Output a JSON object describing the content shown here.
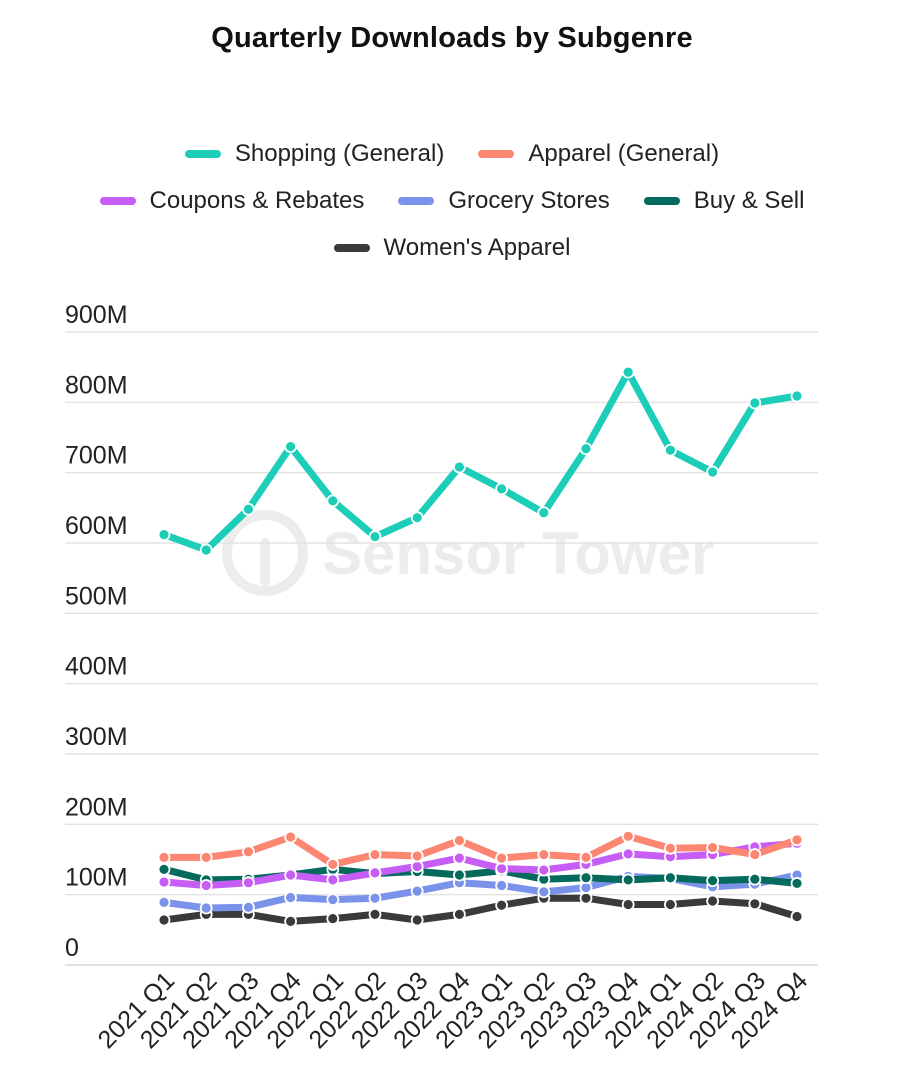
{
  "chart_data": {
    "type": "line",
    "title": "Quarterly Downloads by Subgenre",
    "xlabel": "",
    "ylabel": "",
    "ylim": [
      0,
      900
    ],
    "y_unit": "M",
    "yticks": [
      "0",
      "100M",
      "200M",
      "300M",
      "400M",
      "500M",
      "600M",
      "700M",
      "800M",
      "900M"
    ],
    "grid": true,
    "legend_position": "top",
    "categories": [
      "2021 Q1",
      "2021 Q2",
      "2021 Q3",
      "2021 Q4",
      "2022 Q1",
      "2022 Q2",
      "2022 Q3",
      "2022 Q4",
      "2023 Q1",
      "2023 Q2",
      "2023 Q3",
      "2023 Q4",
      "2024 Q1",
      "2024 Q2",
      "2024 Q3",
      "2024 Q4"
    ],
    "series": [
      {
        "name": "Shopping (General)",
        "color": "#1ccdb7",
        "values": [
          612,
          590,
          648,
          737,
          660,
          609,
          636,
          708,
          677,
          643,
          734,
          843,
          732,
          701,
          799,
          809
        ]
      },
      {
        "name": "Apparel (General)",
        "color": "#fc8672",
        "values": [
          153,
          153,
          161,
          182,
          143,
          157,
          155,
          177,
          152,
          157,
          153,
          183,
          166,
          167,
          157,
          178
        ]
      },
      {
        "name": "Coupons & Rebates",
        "color": "#c65ef5",
        "values": [
          118,
          113,
          117,
          128,
          121,
          131,
          140,
          152,
          137,
          135,
          143,
          158,
          154,
          157,
          168,
          173
        ]
      },
      {
        "name": "Grocery Stores",
        "color": "#7b92ea",
        "values": [
          89,
          81,
          82,
          96,
          93,
          95,
          105,
          117,
          113,
          104,
          110,
          126,
          123,
          111,
          115,
          128
        ]
      },
      {
        "name": "Buy & Sell",
        "color": "#046a5c",
        "values": [
          136,
          121,
          122,
          128,
          136,
          130,
          133,
          128,
          134,
          122,
          124,
          121,
          124,
          120,
          122,
          116
        ]
      },
      {
        "name": "Women's Apparel",
        "color": "#3a3a3a",
        "values": [
          64,
          72,
          72,
          62,
          66,
          72,
          64,
          72,
          85,
          95,
          95,
          86,
          86,
          91,
          87,
          69
        ]
      }
    ]
  },
  "watermark": {
    "text": "Sensor Tower"
  }
}
